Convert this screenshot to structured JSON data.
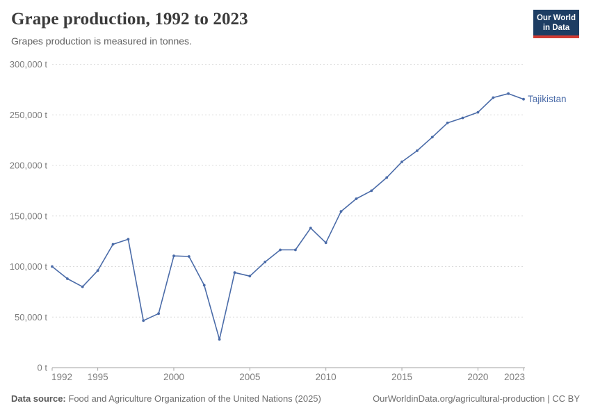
{
  "header": {
    "title": "Grape production, 1992 to 2023",
    "subtitle": "Grapes production is measured in tonnes.",
    "logo": {
      "line1": "Our World",
      "line2": "in Data"
    }
  },
  "chart_data": {
    "type": "line",
    "title": "Grape production, 1992 to 2023",
    "subtitle": "Grapes production is measured in tonnes.",
    "xlabel": "",
    "ylabel": "",
    "unit": "t",
    "xlim": [
      1992,
      2023
    ],
    "ylim": [
      0,
      300000
    ],
    "grid": "horizontal-dashed",
    "legend_position": "end-of-line-label",
    "x": [
      1992,
      1993,
      1994,
      1995,
      1996,
      1997,
      1998,
      1999,
      2000,
      2001,
      2002,
      2003,
      2004,
      2005,
      2006,
      2007,
      2008,
      2009,
      2010,
      2011,
      2012,
      2013,
      2014,
      2015,
      2016,
      2017,
      2018,
      2019,
      2020,
      2021,
      2022,
      2023
    ],
    "series": [
      {
        "name": "Tajikistan",
        "color": "#4a6ba8",
        "values": [
          100000,
          88000,
          80000,
          96000,
          122000,
          127000,
          46500,
          53500,
          110500,
          110000,
          81500,
          28000,
          94000,
          90500,
          104500,
          116500,
          116500,
          138000,
          123500,
          154500,
          167000,
          175000,
          188000,
          203500,
          214500,
          228000,
          242000,
          247000,
          252500,
          267000,
          271000,
          265500
        ]
      }
    ],
    "x_ticks": [
      "1992",
      "1995",
      "2000",
      "2005",
      "2010",
      "2015",
      "2020",
      "2023"
    ],
    "y_ticks": [
      {
        "value": 0,
        "label": "0 t"
      },
      {
        "value": 50000,
        "label": "50,000 t"
      },
      {
        "value": 100000,
        "label": "100,000 t"
      },
      {
        "value": 150000,
        "label": "150,000 t"
      },
      {
        "value": 200000,
        "label": "200,000 t"
      },
      {
        "value": 250000,
        "label": "250,000 t"
      },
      {
        "value": 300000,
        "label": "300,000 t"
      }
    ]
  },
  "footer": {
    "source_label": "Data source:",
    "source_value": "Food and Agriculture Organization of the United Nations (2025)",
    "origin": "OurWorldinData.org/agricultural-production | CC BY"
  },
  "colors": {
    "line": "#4a6ba8",
    "grid": "#dcdcdc",
    "axis": "#a3a3a3",
    "tick_text": "#7d7d7d",
    "title_text": "#3b3b3b",
    "subtitle_text": "#616161",
    "logo_bg": "#1d3d63",
    "logo_stripe": "#d13b33"
  }
}
